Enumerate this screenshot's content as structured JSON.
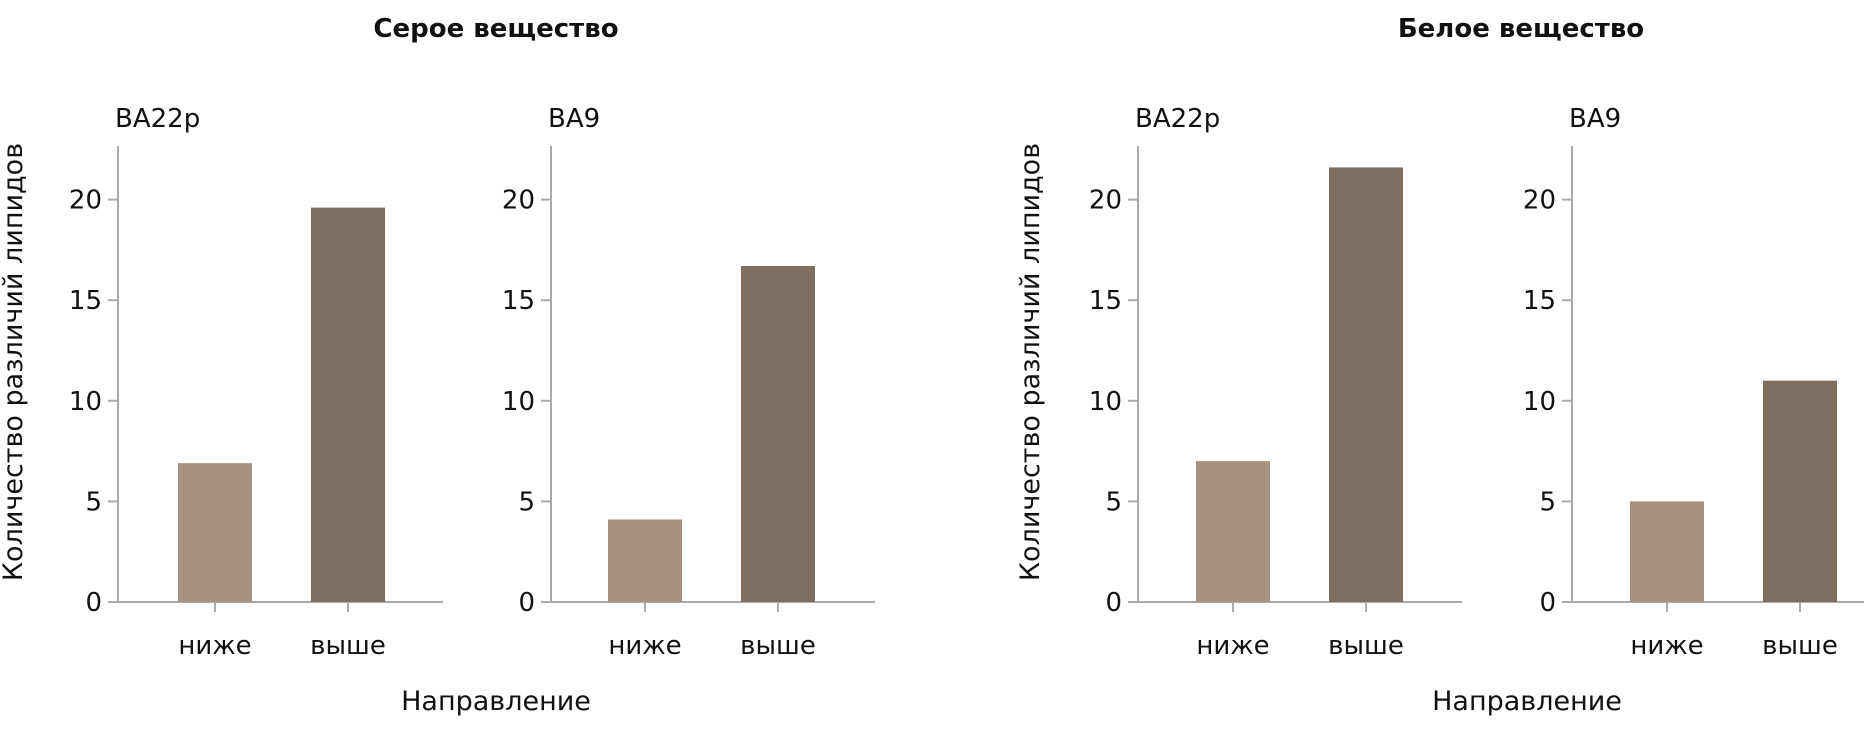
{
  "groups": [
    {
      "title": "Серое вещество",
      "ylabel": "Количество различий липидов",
      "xlabel": "Направление"
    },
    {
      "title": "Белое вещество",
      "ylabel": "Количество различий липидов",
      "xlabel": "Направление"
    }
  ],
  "colors": {
    "lower": "#a8917e",
    "higher": "#7f6e5f",
    "axis": "#aaaaaa"
  },
  "chart_data": [
    {
      "type": "bar",
      "group": "Серое вещество",
      "title": "BA22p",
      "categories": [
        "ниже",
        "выше"
      ],
      "values": [
        6.9,
        19.6
      ],
      "ylabel": "Количество различий липидов",
      "xlabel": "Направление",
      "ylim": [
        0,
        22.7
      ],
      "yticks": [
        0,
        5,
        10,
        15,
        20
      ]
    },
    {
      "type": "bar",
      "group": "Серое вещество",
      "title": "BA9",
      "categories": [
        "ниже",
        "выше"
      ],
      "values": [
        4.1,
        16.7
      ],
      "ylabel": "",
      "xlabel": "Направление",
      "ylim": [
        0,
        22.7
      ],
      "yticks": [
        0,
        5,
        10,
        15,
        20
      ]
    },
    {
      "type": "bar",
      "group": "Белое вещество",
      "title": "BA22p",
      "categories": [
        "ниже",
        "выше"
      ],
      "values": [
        7.0,
        21.6
      ],
      "ylabel": "Количество различий липидов",
      "xlabel": "Направление",
      "ylim": [
        0,
        22.7
      ],
      "yticks": [
        0,
        5,
        10,
        15,
        20
      ]
    },
    {
      "type": "bar",
      "group": "Белое вещество",
      "title": "BA9",
      "categories": [
        "ниже",
        "выше"
      ],
      "values": [
        5.0,
        11.0
      ],
      "ylabel": "",
      "xlabel": "Направление",
      "ylim": [
        0,
        22.7
      ],
      "yticks": [
        0,
        5,
        10,
        15,
        20
      ]
    }
  ]
}
